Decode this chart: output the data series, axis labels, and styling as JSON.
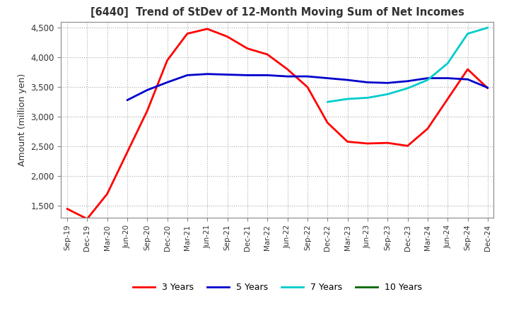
{
  "title": "[6440]  Trend of StDev of 12-Month Moving Sum of Net Incomes",
  "ylabel": "Amount (million yen)",
  "ylim": [
    1300,
    4600
  ],
  "yticks": [
    1500,
    2000,
    2500,
    3000,
    3500,
    4000,
    4500
  ],
  "background_color": "#ffffff",
  "grid_color": "#aaaaaa",
  "legend_labels": [
    "3 Years",
    "5 Years",
    "7 Years",
    "10 Years"
  ],
  "legend_colors": [
    "#ff0000",
    "#0000cc",
    "#00cccc",
    "#006600"
  ],
  "x_labels": [
    "Sep-19",
    "Dec-19",
    "Mar-20",
    "Jun-20",
    "Sep-20",
    "Dec-20",
    "Mar-21",
    "Jun-21",
    "Sep-21",
    "Dec-21",
    "Mar-22",
    "Jun-22",
    "Sep-22",
    "Dec-22",
    "Mar-23",
    "Jun-23",
    "Sep-23",
    "Dec-23",
    "Mar-24",
    "Jun-24",
    "Sep-24",
    "Dec-24"
  ],
  "series_3y": [
    1450,
    1280,
    1700,
    2400,
    3100,
    3950,
    4400,
    4480,
    4350,
    4150,
    4050,
    3800,
    3500,
    2900,
    2580,
    2550,
    2560,
    2510,
    2800,
    3300,
    3800,
    3480
  ],
  "series_5y": [
    null,
    null,
    null,
    3280,
    3450,
    3580,
    3700,
    3720,
    3710,
    3700,
    3700,
    3680,
    3680,
    3650,
    3620,
    3580,
    3570,
    3600,
    3650,
    3650,
    3630,
    3490
  ],
  "series_7y": [
    null,
    null,
    null,
    null,
    null,
    null,
    null,
    null,
    null,
    null,
    null,
    null,
    null,
    3250,
    3300,
    3320,
    3380,
    3480,
    3620,
    3900,
    4400,
    4500
  ],
  "series_10y": []
}
